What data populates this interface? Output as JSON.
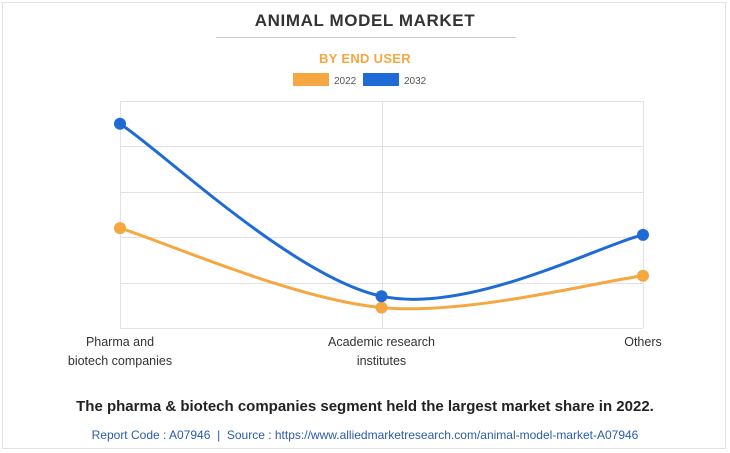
{
  "header": {
    "title": "ANIMAL MODEL MARKET",
    "subtitle": "BY END USER"
  },
  "footer": {
    "caption": "The pharma & biotech companies segment held the largest market share in 2022.",
    "report_code": "Report Code : A07946",
    "separator": "|",
    "source": "Source : https://www.alliedmarketresearch.com/animal-model-market-A07946"
  },
  "colors": {
    "series_2022": "#f5a742",
    "series_2032": "#1f6bd6",
    "grid": "#e2e2e2",
    "axis_text": "#333333"
  },
  "chart_data": {
    "type": "line",
    "smooth": true,
    "title": "ANIMAL MODEL MARKET",
    "subtitle": "BY END USER",
    "categories": [
      [
        "Pharma and",
        "biotech companies"
      ],
      [
        "Academic research",
        "institutes"
      ],
      [
        "Others"
      ]
    ],
    "series": [
      {
        "name": "2022",
        "color": "#f5a742",
        "values": [
          2.2,
          0.45,
          1.15
        ]
      },
      {
        "name": "2032",
        "color": "#1f6bd6",
        "values": [
          4.5,
          0.7,
          2.05
        ]
      }
    ],
    "ylim": [
      0,
      5
    ],
    "ytick_step": 1,
    "y_tick_labels_visible": false,
    "grid": true,
    "legend": "top-center",
    "xlabel": "",
    "ylabel": ""
  }
}
